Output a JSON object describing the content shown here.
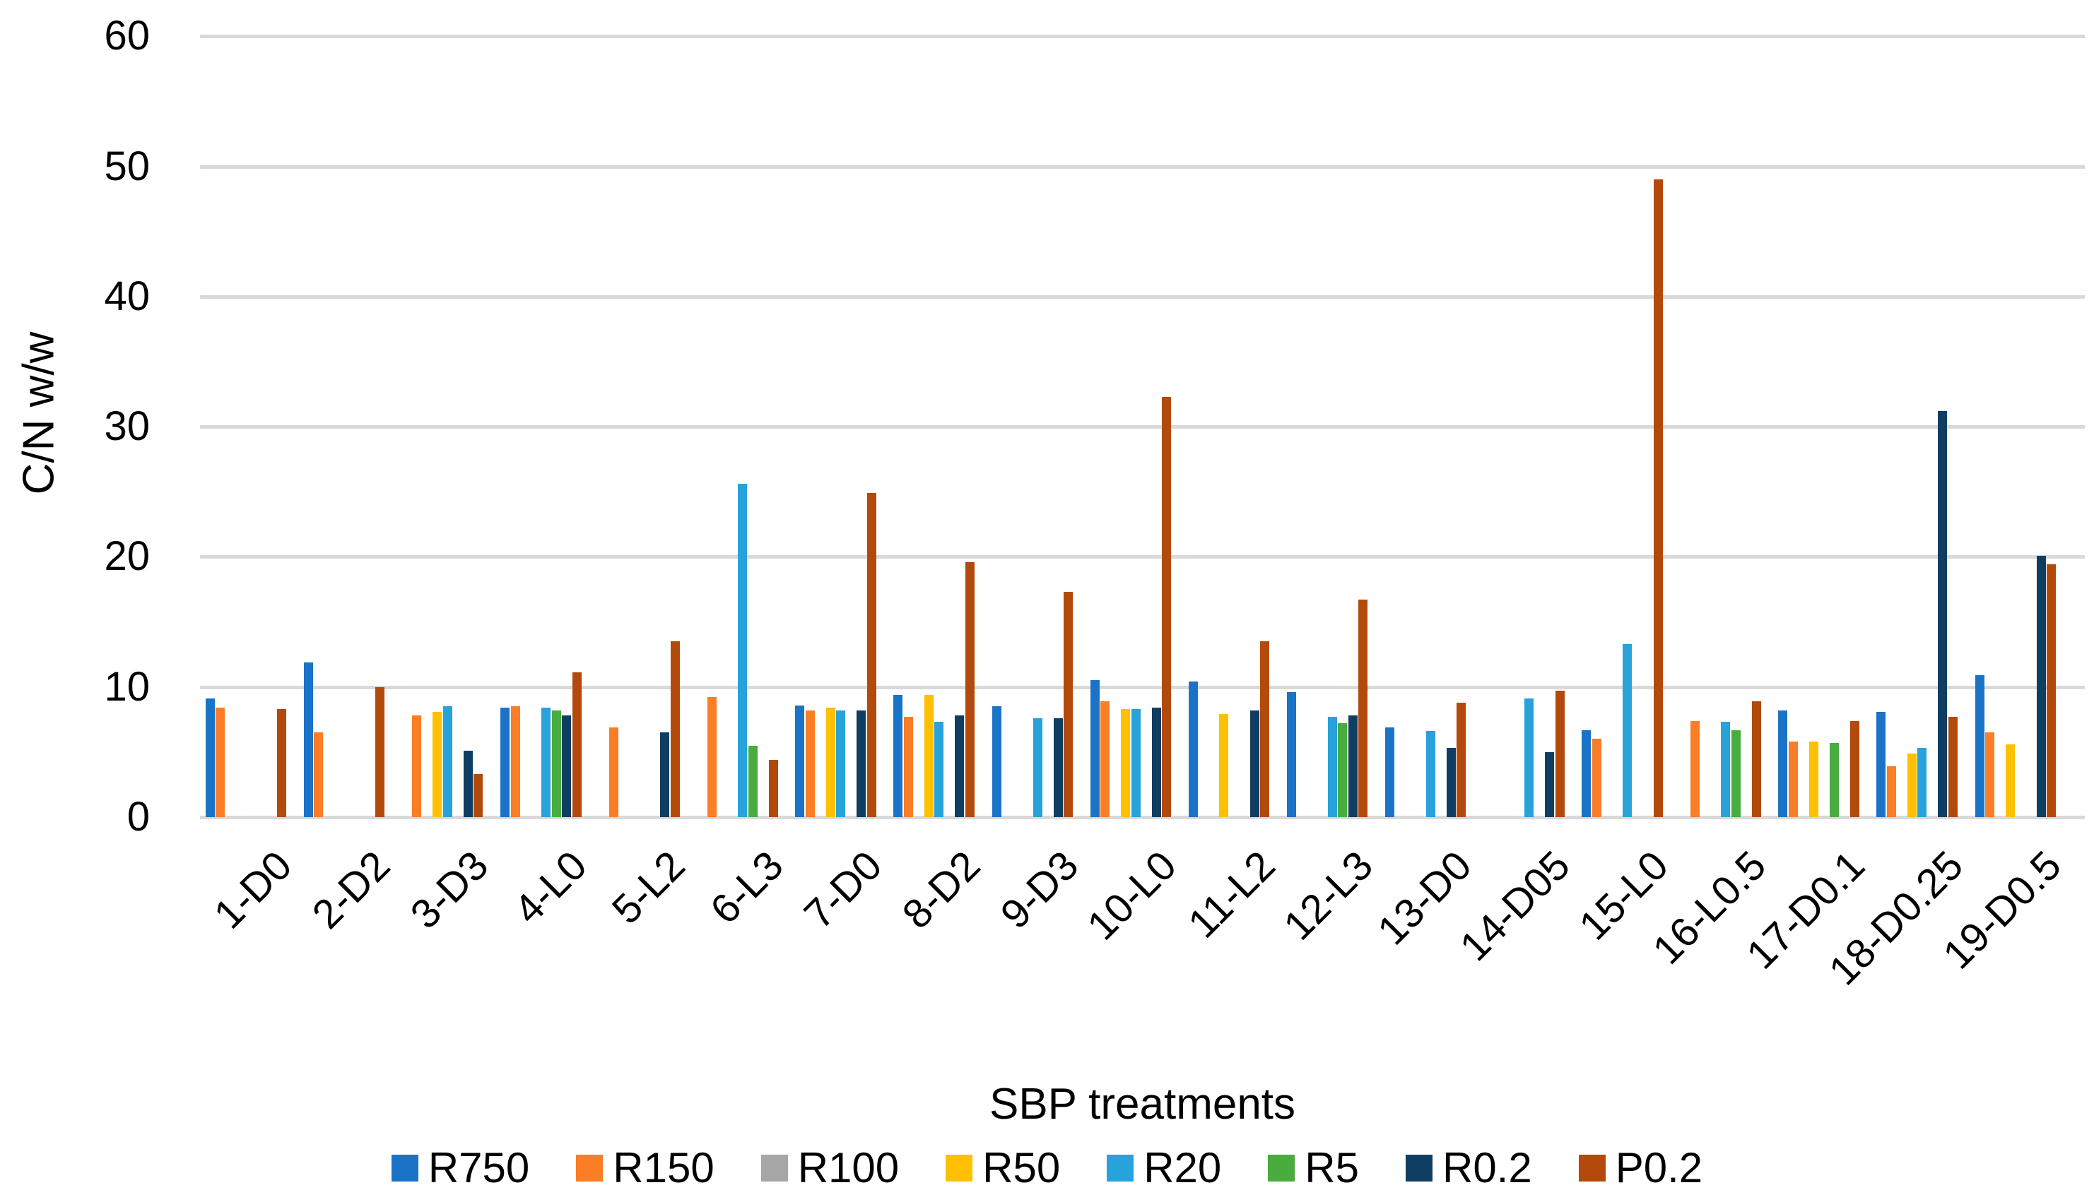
{
  "figure": {
    "background": "#FFFFFF",
    "text_color": "#000000",
    "gridline_color": "#D9D9D9"
  },
  "chart_data": {
    "type": "bar",
    "title": "",
    "xlabel": "SBP treatments",
    "ylabel": "C/N w/w",
    "ylim": [
      0,
      60
    ],
    "yticks": [
      0,
      10,
      20,
      30,
      40,
      50,
      60
    ],
    "grid": true,
    "legend_position": "bottom",
    "categories": [
      "1-D0",
      "2-D2",
      "3-D3",
      "4-L0",
      "5-L2",
      "6-L3",
      "7-D0",
      "8-D2",
      "9-D3",
      "10-L0",
      "11-L2",
      "12-L3",
      "13-D0",
      "14-D05",
      "15-L0",
      "16-L0.5",
      "17-D0.1",
      "18-D0.25",
      "19-D0.5"
    ],
    "series": [
      {
        "name": "R750",
        "color": "#1B73C7",
        "values": [
          9.1,
          11.9,
          null,
          8.4,
          null,
          null,
          8.6,
          9.4,
          8.5,
          10.5,
          10.4,
          9.6,
          6.9,
          null,
          6.7,
          null,
          8.2,
          8.1,
          10.9
        ]
      },
      {
        "name": "R150",
        "color": "#FB7D25",
        "values": [
          8.4,
          6.5,
          7.8,
          8.5,
          6.9,
          9.2,
          8.2,
          7.7,
          null,
          8.9,
          null,
          null,
          null,
          null,
          6.0,
          7.4,
          5.8,
          3.9,
          6.5
        ]
      },
      {
        "name": "R100",
        "color": "#A6A6A6",
        "values": [
          null,
          null,
          null,
          null,
          null,
          null,
          null,
          null,
          null,
          null,
          null,
          null,
          null,
          null,
          null,
          null,
          null,
          null,
          null
        ]
      },
      {
        "name": "R50",
        "color": "#FEC001",
        "values": [
          null,
          null,
          8.1,
          null,
          null,
          null,
          8.4,
          9.4,
          null,
          8.3,
          7.9,
          null,
          null,
          null,
          null,
          null,
          5.8,
          4.9,
          5.6
        ]
      },
      {
        "name": "R20",
        "color": "#27A2DB",
        "values": [
          null,
          null,
          8.5,
          8.4,
          null,
          25.6,
          8.2,
          7.3,
          7.6,
          8.3,
          null,
          7.7,
          6.6,
          9.1,
          13.3,
          7.3,
          null,
          5.3,
          null
        ]
      },
      {
        "name": "R5",
        "color": "#48AD3E",
        "values": [
          null,
          null,
          null,
          8.2,
          null,
          5.5,
          null,
          null,
          null,
          null,
          null,
          7.2,
          null,
          null,
          null,
          6.7,
          5.7,
          null,
          null
        ]
      },
      {
        "name": "R0.2",
        "color": "#103E63",
        "values": [
          null,
          null,
          5.1,
          7.8,
          6.5,
          null,
          8.2,
          7.8,
          7.6,
          8.4,
          8.2,
          7.8,
          5.3,
          5.0,
          null,
          null,
          null,
          31.2,
          20.1
        ]
      },
      {
        "name": "P0.2",
        "color": "#B34A0C",
        "values": [
          8.3,
          10.0,
          3.3,
          11.1,
          13.5,
          4.4,
          24.9,
          19.6,
          17.3,
          32.3,
          13.5,
          16.7,
          8.8,
          9.7,
          49.0,
          8.9,
          7.4,
          7.7,
          19.4
        ]
      }
    ]
  }
}
